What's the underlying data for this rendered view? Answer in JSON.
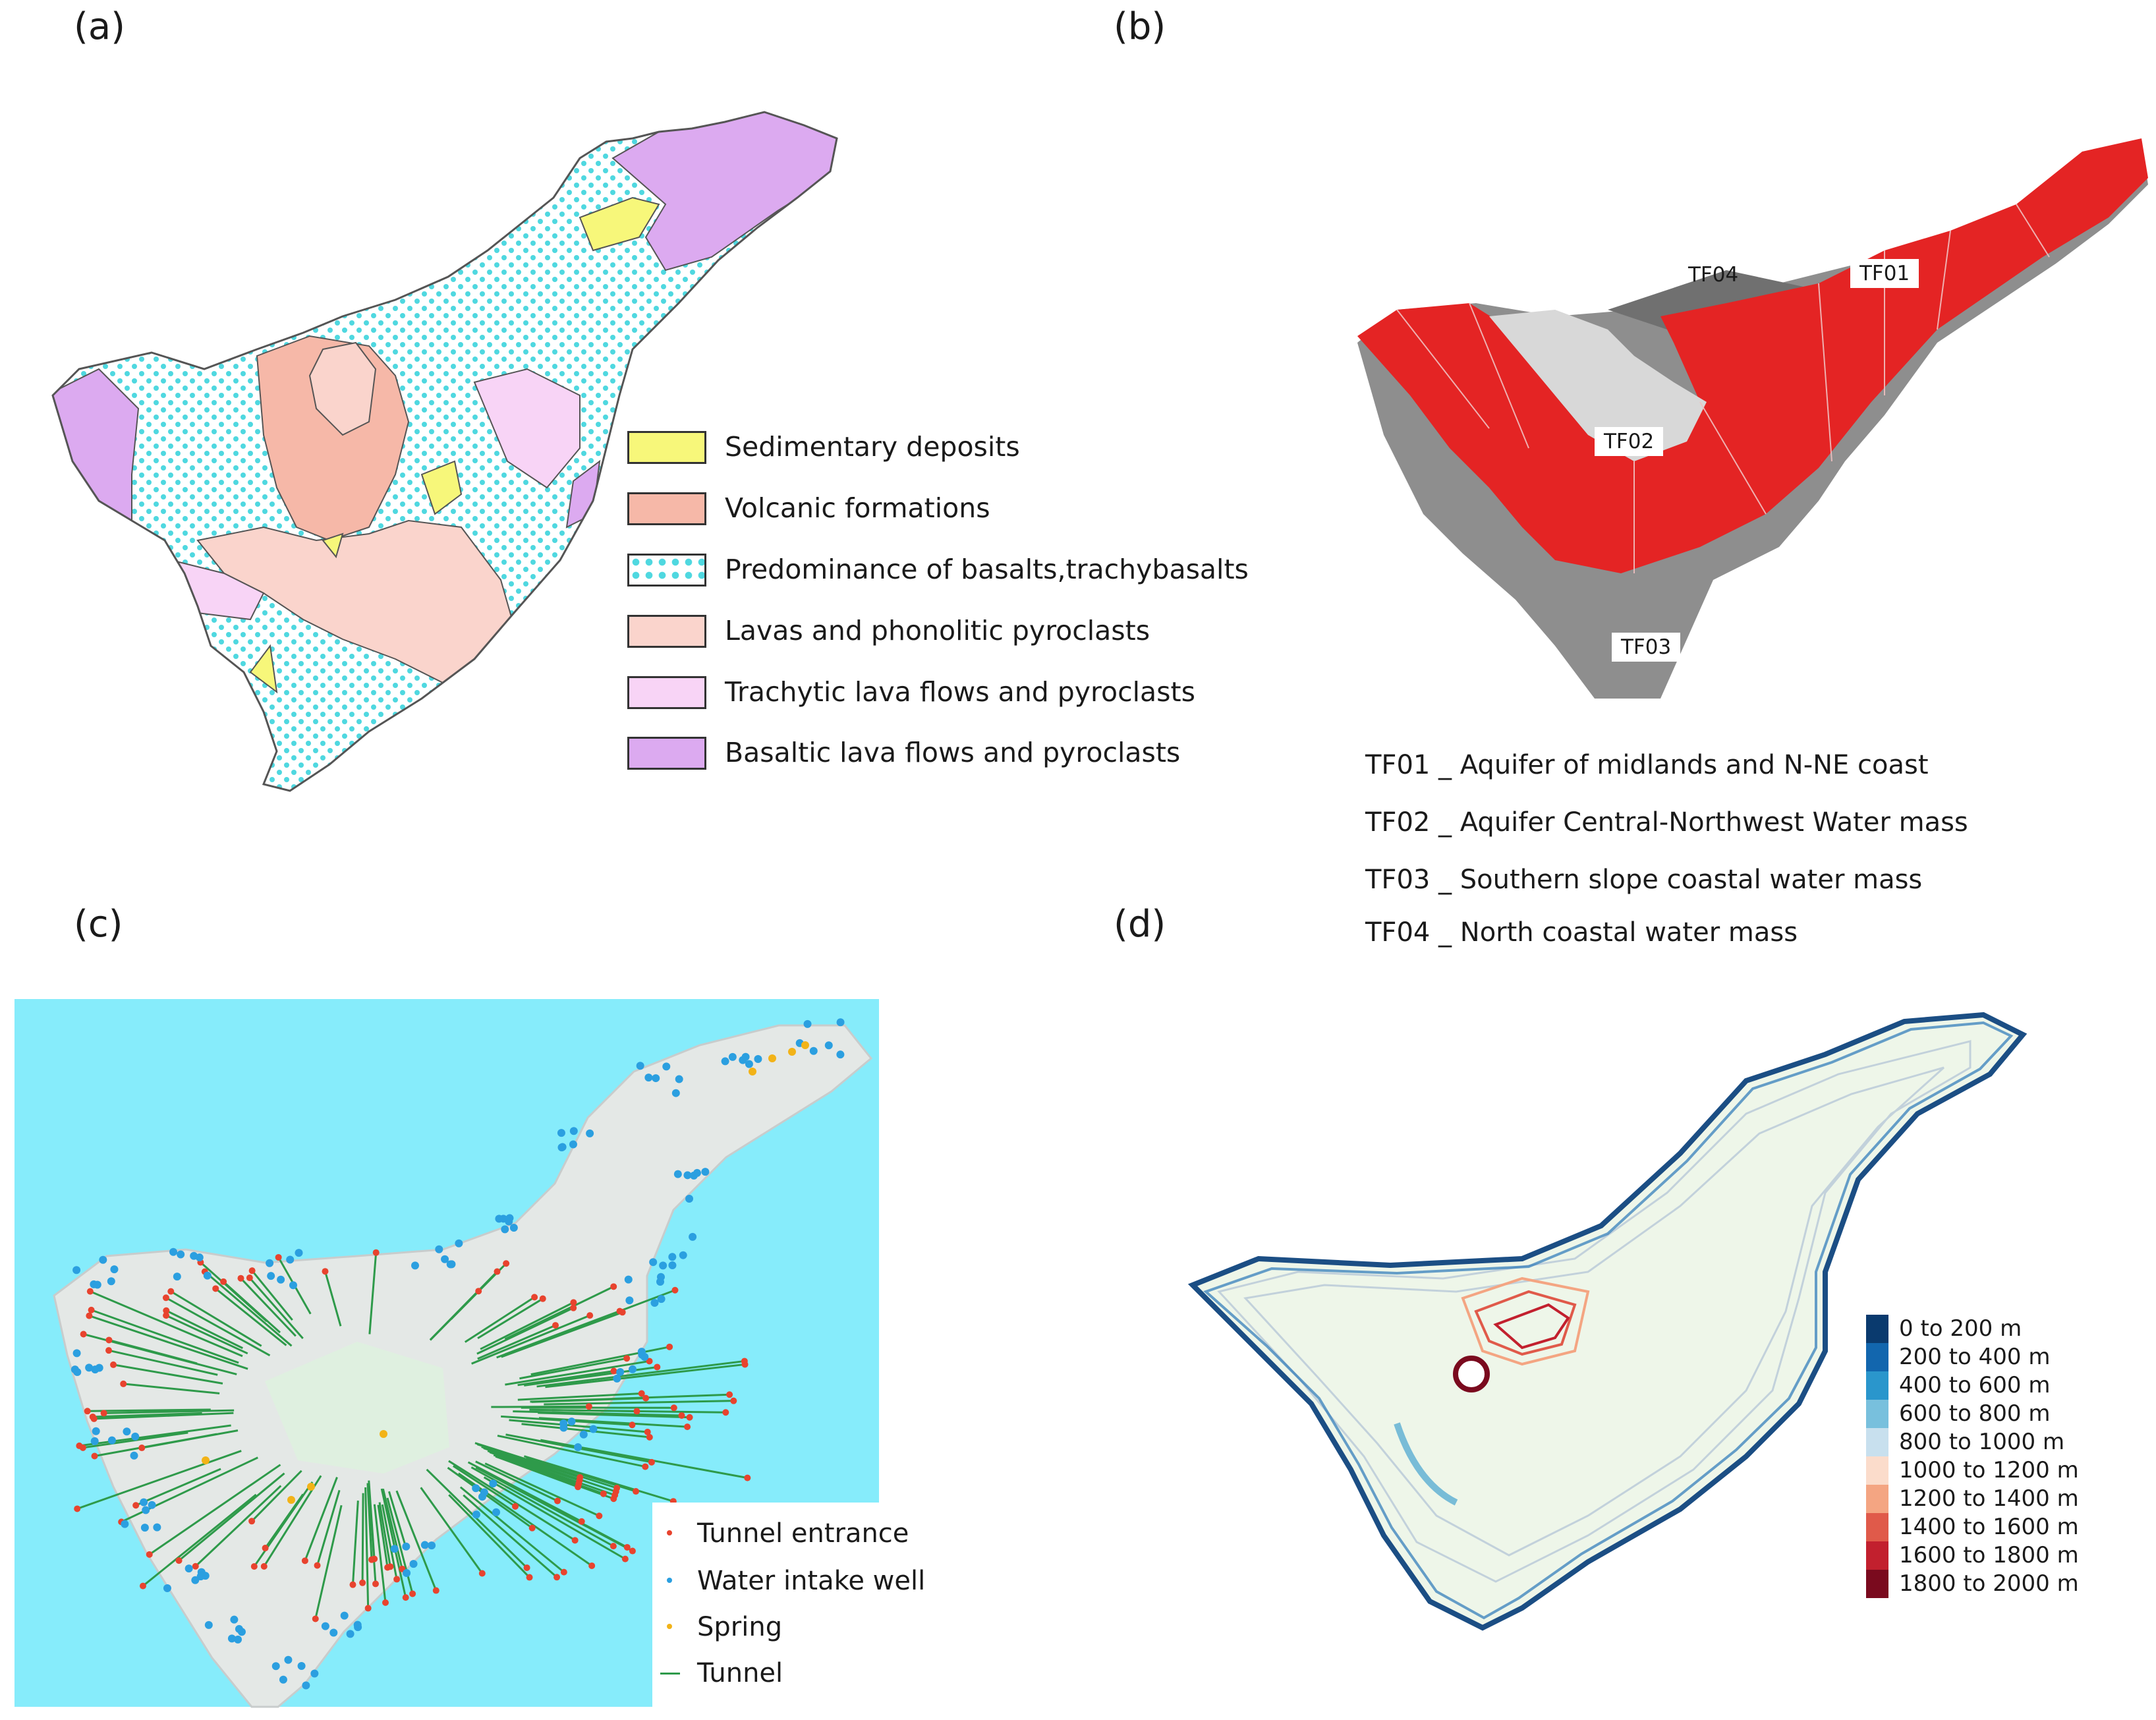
{
  "panels": {
    "a": {
      "label": "(a)",
      "legend": [
        {
          "label": "Sedimentary deposits",
          "color": "#f7f77a",
          "pattern": "solid"
        },
        {
          "label": "Volcanic formations",
          "color": "#f6b8a8",
          "pattern": "solid"
        },
        {
          "label": "Predominance of basalts,trachybasalts",
          "color": "#4fd8e0",
          "pattern": "dots"
        },
        {
          "label": "Lavas and phonolitic pyroclasts",
          "color": "#fad4cc",
          "pattern": "solid"
        },
        {
          "label": "Trachytic lava flows and pyroclasts",
          "color": "#f8d4f6",
          "pattern": "solid"
        },
        {
          "label": "Basaltic lava flows and pyroclasts",
          "color": "#dcaaf0",
          "pattern": "solid"
        }
      ]
    },
    "b": {
      "label": "(b)",
      "zones": {
        "tf01": "TF01",
        "tf02": "TF02",
        "tf03": "TF03",
        "tf04": "TF04"
      },
      "legend": [
        "TF01 _ Aquifer of midlands and N-NE coast",
        "TF02 _ Aquifer Central-Northwest Water mass",
        "TF03 _ Southern slope coastal water mass",
        "TF04 _ North coastal water mass"
      ],
      "colors": {
        "tf01": "#e42424",
        "tf02": "#d8d8d8",
        "tf03": "#8e8e8e",
        "tf04": "#707070"
      }
    },
    "c": {
      "label": "(c)",
      "legend": [
        {
          "label": "Tunnel entrance",
          "color": "#e8432e",
          "marker": "dot"
        },
        {
          "label": "Water intake well",
          "color": "#2b9fe0",
          "marker": "dot"
        },
        {
          "label": "Spring",
          "color": "#f2b318",
          "marker": "dot"
        },
        {
          "label": "Tunnel",
          "color": "#2e9a4a",
          "marker": "line"
        }
      ],
      "colors": {
        "sea": "#86ecfb",
        "land": "#e4e8e6"
      }
    },
    "d": {
      "label": "(d)",
      "legend": [
        {
          "label": "0 to 200 m",
          "color": "#0a3a6e"
        },
        {
          "label": "200 to 400 m",
          "color": "#1266ae"
        },
        {
          "label": "400 to 600 m",
          "color": "#2a96cc"
        },
        {
          "label": "600 to 800 m",
          "color": "#78c0dd"
        },
        {
          "label": "800 to 1000 m",
          "color": "#c8e0ee"
        },
        {
          "label": "1000 to 1200 m",
          "color": "#fbdccb"
        },
        {
          "label": "1200 to 1400 m",
          "color": "#f4a582"
        },
        {
          "label": "1400 to 1600 m",
          "color": "#e05a4a"
        },
        {
          "label": "1600 to 1800 m",
          "color": "#c2202e"
        },
        {
          "label": "1800 to 2000 m",
          "color": "#7a0a1e"
        }
      ]
    }
  }
}
